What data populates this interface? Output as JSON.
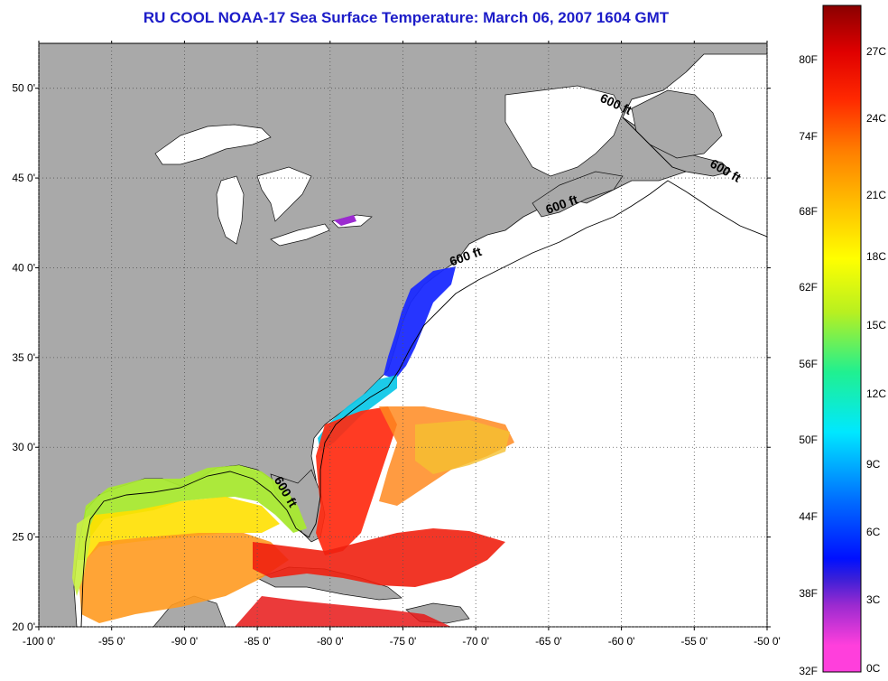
{
  "title": "RU COOL  NOAA-17  Sea Surface Temperature:  March 06, 2007 1604 GMT",
  "map": {
    "lon_range": [
      -100,
      -50
    ],
    "lat_range": [
      20,
      52.5
    ],
    "x_ticks": [
      "-100 0'",
      "-95 0'",
      "-90 0'",
      "-85 0'",
      "-80 0'",
      "-75 0'",
      "-70 0'",
      "-65 0'",
      "-60 0'",
      "-55 0'",
      "-50 0'"
    ],
    "y_ticks": [
      "50 0'",
      "45 0'",
      "40 0'",
      "35 0'",
      "30 0'",
      "25 0'",
      "20 0'"
    ],
    "land_color": "#a9a9a9",
    "water_color": "#ffffff",
    "isobath_labels": [
      {
        "text": "600 ft",
        "lon": -60.5,
        "lat": 48.9
      },
      {
        "text": "600 ft",
        "lon": -53.0,
        "lat": 45.2
      },
      {
        "text": "600 ft",
        "lon": -64.0,
        "lat": 43.3
      },
      {
        "text": "600 ft",
        "lon": -70.6,
        "lat": 40.4
      },
      {
        "text": "600 ft",
        "lon": -83.3,
        "lat": 27.4
      }
    ]
  },
  "colorbar": {
    "f_labels": [
      "80F",
      "74F",
      "68F",
      "62F",
      "56F",
      "50F",
      "44F",
      "38F",
      "32F"
    ],
    "c_labels": [
      "27C",
      "24C",
      "21C",
      "18C",
      "15C",
      "12C",
      "9C",
      "6C",
      "3C",
      "0C"
    ],
    "stops": [
      "#ff3fdc",
      "#9b2ad0",
      "#4a2fd0",
      "#0010ff",
      "#0080ff",
      "#00e8ff",
      "#20f080",
      "#b8f020",
      "#ffff00",
      "#ffc000",
      "#ff8000",
      "#ff2000",
      "#e00000",
      "#8a0000"
    ]
  }
}
